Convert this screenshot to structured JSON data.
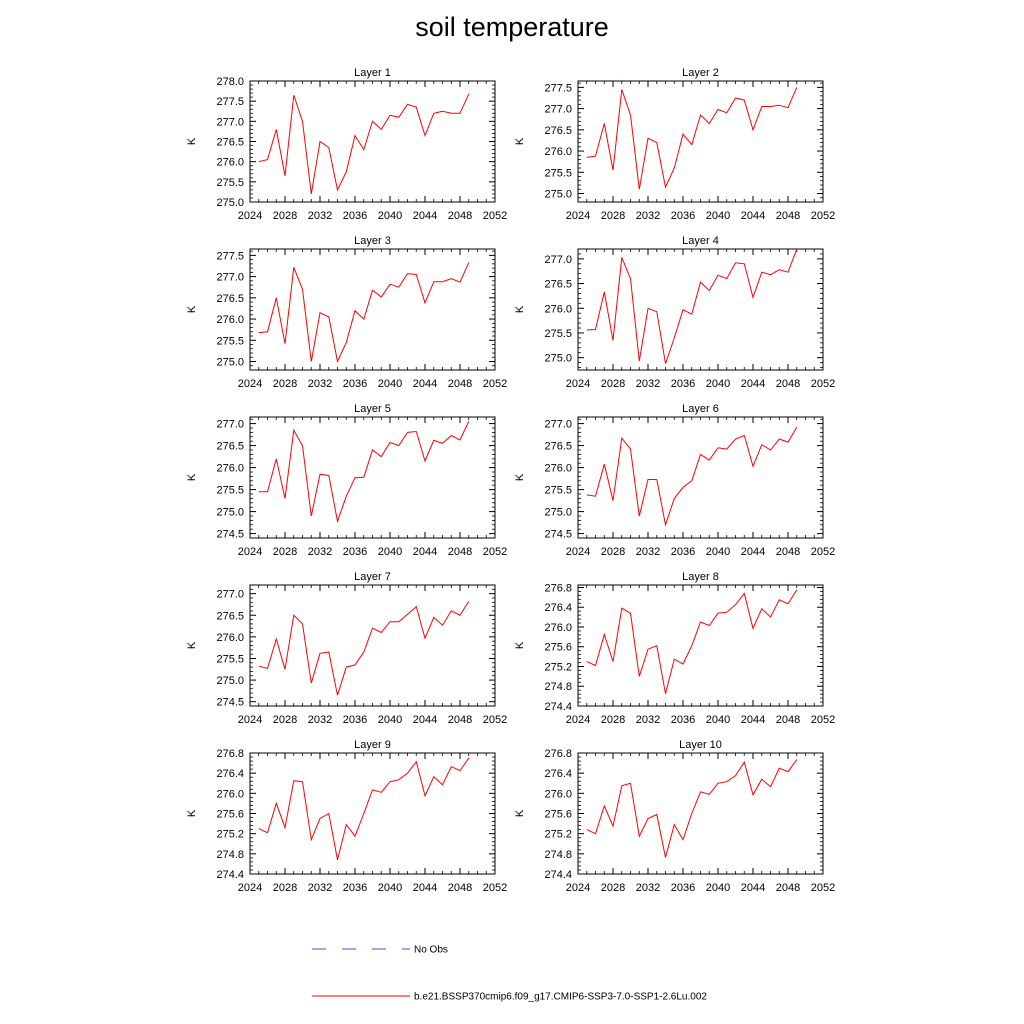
{
  "title": "soil temperature",
  "colors": {
    "model": "#ff0000",
    "obs": "#4d4dcc",
    "axis": "#000000"
  },
  "legend": {
    "obs_label": "No Obs",
    "model_label": "b.e21.BSSP370cmip6.f09_g17.CMIP6-SSP3-7.0-SSP1-2.6Lu.002"
  },
  "chart_data": [
    {
      "type": "line",
      "title": "Layer 1",
      "ylabel": "K",
      "xlim": [
        2024,
        2052
      ],
      "ylim": [
        275.0,
        278.0
      ],
      "xticks": [
        2024,
        2028,
        2032,
        2036,
        2040,
        2044,
        2048,
        2052
      ],
      "xtick_labels": [
        "2024",
        "2028",
        "2032",
        "2036",
        "2040",
        "2044",
        "2048",
        "2052"
      ],
      "yticks": [
        275.0,
        275.5,
        276.0,
        276.5,
        277.0,
        277.5,
        278.0
      ],
      "ytick_labels": [
        "275.0",
        "275.5",
        "276.0",
        "276.5",
        "277.0",
        "277.5",
        "278.0"
      ],
      "x": [
        2025,
        2026,
        2027,
        2028,
        2029,
        2030,
        2031,
        2032,
        2033,
        2034,
        2035,
        2036,
        2037,
        2038,
        2039,
        2040,
        2041,
        2042,
        2043,
        2044,
        2045,
        2046,
        2047,
        2048,
        2049
      ],
      "series": [
        {
          "values": [
            276.0,
            276.05,
            276.8,
            275.65,
            277.65,
            277.0,
            275.2,
            276.5,
            276.35,
            275.3,
            275.75,
            276.65,
            276.3,
            277.0,
            276.8,
            277.15,
            277.1,
            277.42,
            277.35,
            276.65,
            277.2,
            277.25,
            277.2,
            277.2,
            277.68
          ]
        }
      ]
    },
    {
      "type": "line",
      "title": "Layer 2",
      "ylabel": "K",
      "xlim": [
        2024,
        2052
      ],
      "ylim": [
        274.8,
        277.65
      ],
      "xticks": [
        2024,
        2028,
        2032,
        2036,
        2040,
        2044,
        2048,
        2052
      ],
      "xtick_labels": [
        "2024",
        "2028",
        "2032",
        "2036",
        "2040",
        "2044",
        "2048",
        "2052"
      ],
      "yticks": [
        275.0,
        275.5,
        276.0,
        276.5,
        277.0,
        277.5
      ],
      "ytick_labels": [
        "275.0",
        "275.5",
        "276.0",
        "276.5",
        "277.0",
        "277.5"
      ],
      "x": [
        2025,
        2026,
        2027,
        2028,
        2029,
        2030,
        2031,
        2032,
        2033,
        2034,
        2035,
        2036,
        2037,
        2038,
        2039,
        2040,
        2041,
        2042,
        2043,
        2044,
        2045,
        2046,
        2047,
        2048,
        2049
      ],
      "series": [
        {
          "values": [
            275.85,
            275.88,
            276.65,
            275.55,
            277.45,
            276.85,
            275.1,
            276.3,
            276.2,
            275.15,
            275.6,
            276.4,
            276.15,
            276.85,
            276.65,
            276.98,
            276.9,
            277.25,
            277.2,
            276.5,
            277.05,
            277.05,
            277.08,
            277.02,
            277.5
          ]
        }
      ]
    },
    {
      "type": "line",
      "title": "Layer 3",
      "ylabel": "K",
      "xlim": [
        2024,
        2052
      ],
      "ylim": [
        274.8,
        277.65
      ],
      "xticks": [
        2024,
        2028,
        2032,
        2036,
        2040,
        2044,
        2048,
        2052
      ],
      "xtick_labels": [
        "2024",
        "2028",
        "2032",
        "2036",
        "2040",
        "2044",
        "2048",
        "2052"
      ],
      "yticks": [
        275.0,
        275.5,
        276.0,
        276.5,
        277.0,
        277.5
      ],
      "ytick_labels": [
        "275.0",
        "275.5",
        "276.0",
        "276.5",
        "277.0",
        "277.5"
      ],
      "x": [
        2025,
        2026,
        2027,
        2028,
        2029,
        2030,
        2031,
        2032,
        2033,
        2034,
        2035,
        2036,
        2037,
        2038,
        2039,
        2040,
        2041,
        2042,
        2043,
        2044,
        2045,
        2046,
        2047,
        2048,
        2049
      ],
      "series": [
        {
          "values": [
            275.68,
            275.7,
            276.5,
            275.42,
            277.22,
            276.7,
            275.0,
            276.15,
            276.05,
            275.0,
            275.45,
            276.2,
            276.0,
            276.68,
            276.52,
            276.82,
            276.75,
            277.07,
            277.05,
            276.38,
            276.88,
            276.88,
            276.95,
            276.87,
            277.33
          ]
        }
      ]
    },
    {
      "type": "line",
      "title": "Layer 4",
      "ylabel": "K",
      "xlim": [
        2024,
        2052
      ],
      "ylim": [
        274.75,
        277.2
      ],
      "xticks": [
        2024,
        2028,
        2032,
        2036,
        2040,
        2044,
        2048,
        2052
      ],
      "xtick_labels": [
        "2024",
        "2028",
        "2032",
        "2036",
        "2040",
        "2044",
        "2048",
        "2052"
      ],
      "yticks": [
        275.0,
        275.5,
        276.0,
        276.5,
        277.0
      ],
      "ytick_labels": [
        "275.0",
        "275.5",
        "276.0",
        "276.5",
        "277.0"
      ],
      "x": [
        2025,
        2026,
        2027,
        2028,
        2029,
        2030,
        2031,
        2032,
        2033,
        2034,
        2035,
        2036,
        2037,
        2038,
        2039,
        2040,
        2041,
        2042,
        2043,
        2044,
        2045,
        2046,
        2047,
        2048,
        2049
      ],
      "series": [
        {
          "values": [
            275.56,
            275.57,
            276.33,
            275.35,
            277.03,
            276.6,
            274.93,
            276.0,
            275.93,
            274.88,
            275.4,
            275.97,
            275.88,
            276.53,
            276.36,
            276.67,
            276.6,
            276.92,
            276.9,
            276.22,
            276.73,
            276.68,
            276.78,
            276.73,
            277.2
          ]
        }
      ]
    },
    {
      "type": "line",
      "title": "Layer 5",
      "ylabel": "K",
      "xlim": [
        2024,
        2052
      ],
      "ylim": [
        274.4,
        277.15
      ],
      "xticks": [
        2024,
        2028,
        2032,
        2036,
        2040,
        2044,
        2048,
        2052
      ],
      "xtick_labels": [
        "2024",
        "2028",
        "2032",
        "2036",
        "2040",
        "2044",
        "2048",
        "2052"
      ],
      "yticks": [
        274.5,
        275.0,
        275.5,
        276.0,
        276.5,
        277.0
      ],
      "ytick_labels": [
        "274.5",
        "275.0",
        "275.5",
        "276.0",
        "276.5",
        "277.0"
      ],
      "x": [
        2025,
        2026,
        2027,
        2028,
        2029,
        2030,
        2031,
        2032,
        2033,
        2034,
        2035,
        2036,
        2037,
        2038,
        2039,
        2040,
        2041,
        2042,
        2043,
        2044,
        2045,
        2046,
        2047,
        2048,
        2049
      ],
      "series": [
        {
          "values": [
            275.45,
            275.45,
            276.2,
            275.3,
            276.85,
            276.5,
            274.9,
            275.85,
            275.82,
            274.78,
            275.35,
            275.77,
            275.78,
            276.4,
            276.25,
            276.57,
            276.5,
            276.8,
            276.82,
            276.15,
            276.62,
            276.55,
            276.73,
            276.63,
            277.05
          ]
        }
      ]
    },
    {
      "type": "line",
      "title": "Layer 6",
      "ylabel": "K",
      "xlim": [
        2024,
        2052
      ],
      "ylim": [
        274.4,
        277.15
      ],
      "xticks": [
        2024,
        2028,
        2032,
        2036,
        2040,
        2044,
        2048,
        2052
      ],
      "xtick_labels": [
        "2024",
        "2028",
        "2032",
        "2036",
        "2040",
        "2044",
        "2048",
        "2052"
      ],
      "yticks": [
        274.5,
        275.0,
        275.5,
        276.0,
        276.5,
        277.0
      ],
      "ytick_labels": [
        "274.5",
        "275.0",
        "275.5",
        "276.0",
        "276.5",
        "277.0"
      ],
      "x": [
        2025,
        2026,
        2027,
        2028,
        2029,
        2030,
        2031,
        2032,
        2033,
        2034,
        2035,
        2036,
        2037,
        2038,
        2039,
        2040,
        2041,
        2042,
        2043,
        2044,
        2045,
        2046,
        2047,
        2048,
        2049
      ],
      "series": [
        {
          "values": [
            275.38,
            275.35,
            276.08,
            275.25,
            276.67,
            276.42,
            274.9,
            275.73,
            275.73,
            274.7,
            275.3,
            275.55,
            275.7,
            276.3,
            276.17,
            276.45,
            276.42,
            276.65,
            276.73,
            276.03,
            276.52,
            276.4,
            276.65,
            276.58,
            276.92
          ]
        }
      ]
    },
    {
      "type": "line",
      "title": "Layer 7",
      "ylabel": "K",
      "xlim": [
        2024,
        2052
      ],
      "ylim": [
        274.4,
        277.2
      ],
      "xticks": [
        2024,
        2028,
        2032,
        2036,
        2040,
        2044,
        2048,
        2052
      ],
      "xtick_labels": [
        "2024",
        "2028",
        "2032",
        "2036",
        "2040",
        "2044",
        "2048",
        "2052"
      ],
      "yticks": [
        274.5,
        275.0,
        275.5,
        276.0,
        276.5,
        277.0
      ],
      "ytick_labels": [
        "274.5",
        "275.0",
        "275.5",
        "276.0",
        "276.5",
        "277.0"
      ],
      "x": [
        2025,
        2026,
        2027,
        2028,
        2029,
        2030,
        2031,
        2032,
        2033,
        2034,
        2035,
        2036,
        2037,
        2038,
        2039,
        2040,
        2041,
        2042,
        2043,
        2044,
        2045,
        2046,
        2047,
        2048,
        2049
      ],
      "series": [
        {
          "values": [
            275.32,
            275.27,
            275.95,
            275.25,
            276.5,
            276.3,
            274.93,
            275.62,
            275.65,
            274.65,
            275.3,
            275.35,
            275.65,
            276.2,
            276.1,
            276.35,
            276.35,
            276.52,
            276.7,
            275.97,
            276.45,
            276.27,
            276.6,
            276.5,
            276.82
          ]
        }
      ]
    },
    {
      "type": "line",
      "title": "Layer 8",
      "ylabel": "K",
      "xlim": [
        2024,
        2052
      ],
      "ylim": [
        274.4,
        276.85
      ],
      "xticks": [
        2024,
        2028,
        2032,
        2036,
        2040,
        2044,
        2048,
        2052
      ],
      "xtick_labels": [
        "2024",
        "2028",
        "2032",
        "2036",
        "2040",
        "2044",
        "2048",
        "2052"
      ],
      "yticks": [
        274.4,
        274.8,
        275.2,
        275.6,
        276.0,
        276.4,
        276.8
      ],
      "ytick_labels": [
        "274.4",
        "274.8",
        "275.2",
        "275.6",
        "276.0",
        "276.4",
        "276.8"
      ],
      "x": [
        2025,
        2026,
        2027,
        2028,
        2029,
        2030,
        2031,
        2032,
        2033,
        2034,
        2035,
        2036,
        2037,
        2038,
        2039,
        2040,
        2041,
        2042,
        2043,
        2044,
        2045,
        2046,
        2047,
        2048,
        2049
      ],
      "series": [
        {
          "values": [
            275.3,
            275.22,
            275.85,
            275.3,
            276.38,
            276.28,
            275.0,
            275.55,
            275.62,
            274.65,
            275.35,
            275.25,
            275.62,
            276.1,
            276.03,
            276.28,
            276.3,
            276.45,
            276.68,
            275.97,
            276.37,
            276.2,
            276.55,
            276.47,
            276.75
          ]
        }
      ]
    },
    {
      "type": "line",
      "title": "Layer 9",
      "ylabel": "K",
      "xlim": [
        2024,
        2052
      ],
      "ylim": [
        274.4,
        276.8
      ],
      "xticks": [
        2024,
        2028,
        2032,
        2036,
        2040,
        2044,
        2048,
        2052
      ],
      "xtick_labels": [
        "2024",
        "2028",
        "2032",
        "2036",
        "2040",
        "2044",
        "2048",
        "2052"
      ],
      "yticks": [
        274.4,
        274.8,
        275.2,
        275.6,
        276.0,
        276.4,
        276.8
      ],
      "ytick_labels": [
        "274.4",
        "274.8",
        "275.2",
        "275.6",
        "276.0",
        "276.4",
        "276.8"
      ],
      "x": [
        2025,
        2026,
        2027,
        2028,
        2029,
        2030,
        2031,
        2032,
        2033,
        2034,
        2035,
        2036,
        2037,
        2038,
        2039,
        2040,
        2041,
        2042,
        2043,
        2044,
        2045,
        2046,
        2047,
        2048,
        2049
      ],
      "series": [
        {
          "values": [
            275.3,
            275.22,
            275.8,
            275.32,
            276.25,
            276.23,
            275.08,
            275.5,
            275.6,
            274.68,
            275.38,
            275.15,
            275.6,
            276.07,
            276.02,
            276.23,
            276.27,
            276.4,
            276.63,
            275.95,
            276.33,
            276.17,
            276.53,
            276.45,
            276.7
          ]
        }
      ]
    },
    {
      "type": "line",
      "title": "Layer 10",
      "ylabel": "K",
      "xlim": [
        2024,
        2052
      ],
      "ylim": [
        274.4,
        276.8
      ],
      "xticks": [
        2024,
        2028,
        2032,
        2036,
        2040,
        2044,
        2048,
        2052
      ],
      "xtick_labels": [
        "2024",
        "2028",
        "2032",
        "2036",
        "2040",
        "2044",
        "2048",
        "2052"
      ],
      "yticks": [
        274.4,
        274.8,
        275.2,
        275.6,
        276.0,
        276.4,
        276.8
      ],
      "ytick_labels": [
        "274.4",
        "274.8",
        "275.2",
        "275.6",
        "276.0",
        "276.4",
        "276.8"
      ],
      "x": [
        2025,
        2026,
        2027,
        2028,
        2029,
        2030,
        2031,
        2032,
        2033,
        2034,
        2035,
        2036,
        2037,
        2038,
        2039,
        2040,
        2041,
        2042,
        2043,
        2044,
        2045,
        2046,
        2047,
        2048,
        2049
      ],
      "series": [
        {
          "values": [
            275.28,
            275.2,
            275.75,
            275.35,
            276.15,
            276.2,
            275.15,
            275.5,
            275.58,
            274.73,
            275.38,
            275.08,
            275.6,
            276.03,
            275.98,
            276.2,
            276.23,
            276.35,
            276.62,
            275.97,
            276.28,
            276.13,
            276.5,
            276.43,
            276.67
          ]
        }
      ]
    }
  ]
}
